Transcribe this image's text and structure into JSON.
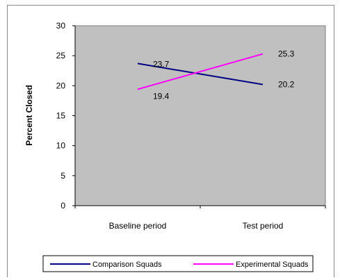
{
  "chart_data": {
    "type": "line",
    "categories": [
      "Baseline period",
      "Test period"
    ],
    "series": [
      {
        "name": "Comparison Squads",
        "values": [
          23.7,
          20.2
        ],
        "color": "#000080"
      },
      {
        "name": "Experimental Squads",
        "values": [
          19.4,
          25.3
        ],
        "color": "#ff00ff"
      }
    ],
    "title": "",
    "xlabel": "",
    "ylabel": "Percent Closed",
    "ylim": [
      0,
      30
    ],
    "yticks": [
      0,
      5,
      10,
      15,
      20,
      25,
      30
    ],
    "data_labels": [
      "23.7",
      "20.2",
      "19.4",
      "25.3"
    ],
    "plot_background": "#c0c0c0",
    "grid": false,
    "legend_position": "bottom"
  }
}
